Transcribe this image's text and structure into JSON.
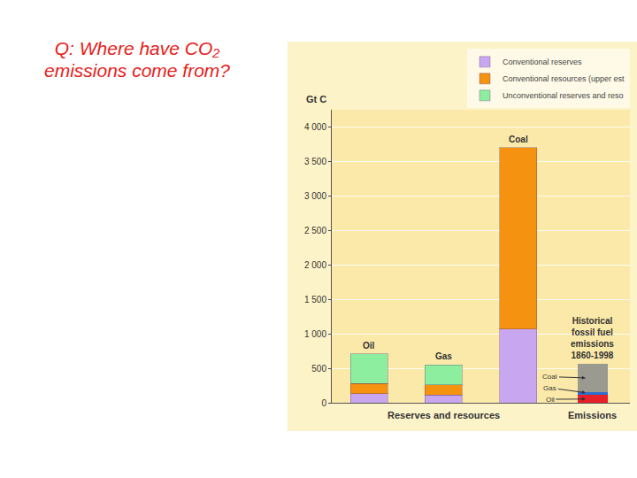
{
  "chart_data": {
    "type": "bar",
    "title": "Q: Where have CO₂ emissions come from?",
    "y_label": "Gt C",
    "categories": [
      "Oil",
      "Gas",
      "Coal",
      "Historical fossil fuel emissions 1860-1998"
    ],
    "series": [
      {
        "name": "Conventional reserves",
        "color": "#c9a7f0",
        "values": [
          130,
          110,
          1070,
          null
        ]
      },
      {
        "name": "Conventional resources (upper est",
        "color": "#f5920f",
        "values": [
          150,
          150,
          2630,
          null
        ]
      },
      {
        "name": "Unconventional reserves and reso",
        "color": "#8eeea0",
        "values": [
          430,
          290,
          null,
          null
        ]
      }
    ],
    "emissions": {
      "category": "Historical fossil fuel emissions 1860-1998",
      "segments": [
        {
          "name": "Oil",
          "color": "#e8202a",
          "value": 110
        },
        {
          "name": "Gas",
          "color": "#2f6fd0",
          "value": 45
        },
        {
          "name": "Coal",
          "color": "#9a9a90",
          "value": 405
        }
      ]
    },
    "x_groups": [
      {
        "label": "Reserves and resources",
        "categories": [
          "Oil",
          "Gas",
          "Coal"
        ]
      },
      {
        "label": "Emissions",
        "categories": [
          "Historical fossil fuel emissions 1860-1998"
        ]
      }
    ],
    "ylim": [
      0,
      4250
    ],
    "yticks": [
      0,
      500,
      {
        "value": 1000,
        "label": "1 000"
      },
      {
        "value": 1500,
        "label": "1 500"
      },
      {
        "value": 2000,
        "label": "2 000"
      },
      {
        "value": 2500,
        "label": "2 500"
      },
      {
        "value": 3000,
        "label": "3 000"
      },
      {
        "value": 3500,
        "label": "3 500"
      },
      {
        "value": 4000,
        "label": "4 000"
      }
    ],
    "stacked": true,
    "grid": true,
    "legend": "top right",
    "tick_labels": "y"
  }
}
